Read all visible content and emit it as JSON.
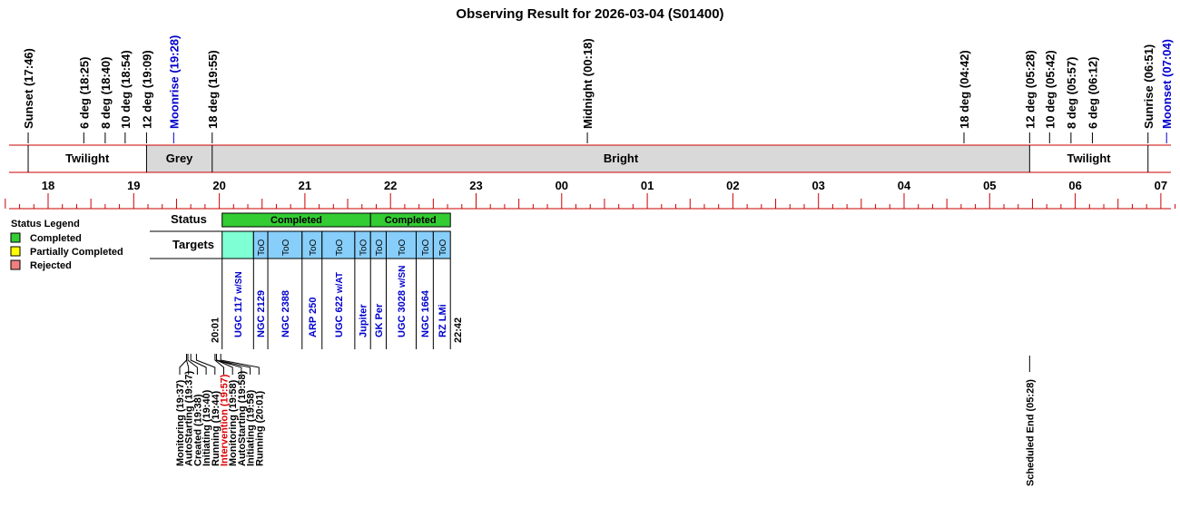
{
  "title": "Observing Result for 2026-03-04 (S01400)",
  "time_axis": {
    "start_hour": 17.5,
    "end_hour": 31.2,
    "hour_labels": [
      {
        "h": 18,
        "label": "18"
      },
      {
        "h": 19,
        "label": "19"
      },
      {
        "h": 20,
        "label": "20"
      },
      {
        "h": 21,
        "label": "21"
      },
      {
        "h": 22,
        "label": "22"
      },
      {
        "h": 23,
        "label": "23"
      },
      {
        "h": 24,
        "label": "00"
      },
      {
        "h": 25,
        "label": "01"
      },
      {
        "h": 26,
        "label": "02"
      },
      {
        "h": 27,
        "label": "03"
      },
      {
        "h": 28,
        "label": "04"
      },
      {
        "h": 29,
        "label": "05"
      },
      {
        "h": 30,
        "label": "06"
      },
      {
        "h": 31,
        "label": "07"
      }
    ]
  },
  "events": [
    {
      "label": "Sunset (17:46)",
      "h": 17.767,
      "color": "#000000"
    },
    {
      "label": "6 deg (18:25)",
      "h": 18.417,
      "color": "#000000"
    },
    {
      "label": "8 deg (18:40)",
      "h": 18.667,
      "color": "#000000"
    },
    {
      "label": "10 deg (18:54)",
      "h": 18.9,
      "color": "#000000"
    },
    {
      "label": "12 deg (19:09)",
      "h": 19.15,
      "color": "#000000"
    },
    {
      "label": "Moonrise (19:28)",
      "h": 19.467,
      "color": "#0000cc"
    },
    {
      "label": "18 deg (19:55)",
      "h": 19.917,
      "color": "#000000"
    },
    {
      "label": "Midnight (00:18)",
      "h": 24.3,
      "color": "#000000"
    },
    {
      "label": "18 deg (04:42)",
      "h": 28.7,
      "color": "#000000"
    },
    {
      "label": "12 deg (05:28)",
      "h": 29.467,
      "color": "#000000"
    },
    {
      "label": "10 deg (05:42)",
      "h": 29.7,
      "color": "#000000"
    },
    {
      "label": "8 deg (05:57)",
      "h": 29.95,
      "color": "#000000"
    },
    {
      "label": "6 deg (06:12)",
      "h": 30.2,
      "color": "#000000"
    },
    {
      "label": "Sunrise (06:51)",
      "h": 30.85,
      "color": "#000000"
    },
    {
      "label": "Moonset (07:04)",
      "h": 31.067,
      "color": "#0000cc"
    }
  ],
  "sky_bands": [
    {
      "label": "Twilight",
      "start": 17.767,
      "end": 19.15,
      "fill": "#ffffff"
    },
    {
      "label": "Grey",
      "start": 19.15,
      "end": 19.917,
      "fill": "#d9d9d9"
    },
    {
      "label": "Bright",
      "start": 19.917,
      "end": 29.467,
      "fill": "#d9d9d9"
    },
    {
      "label": "Twilight",
      "start": 29.467,
      "end": 30.85,
      "fill": "#ffffff"
    }
  ],
  "legend": {
    "title": "Status Legend",
    "items": [
      {
        "label": "Completed",
        "color": "#33cc33"
      },
      {
        "label": "Partially Completed",
        "color": "#ffff00"
      },
      {
        "label": "Rejected",
        "color": "#f08080"
      }
    ]
  },
  "status_label": "Status",
  "targets_label": "Targets",
  "status_blocks": [
    {
      "label": "Completed",
      "start": 20.033,
      "end": 21.767,
      "color": "#33cc33"
    },
    {
      "label": "Completed",
      "start": 21.767,
      "end": 22.7,
      "color": "#33cc33"
    }
  ],
  "target_cells": [
    {
      "start": 20.033,
      "end": 20.4,
      "fill": "#7fffd4",
      "tag": "",
      "name": "UGC 117",
      "note": "w/SN"
    },
    {
      "start": 20.4,
      "end": 20.567,
      "fill": "#87cefa",
      "tag": "ToO",
      "name": "NGC 2129",
      "note": ""
    },
    {
      "start": 20.567,
      "end": 20.967,
      "fill": "#87cefa",
      "tag": "ToO",
      "name": "NGC 2388",
      "note": ""
    },
    {
      "start": 20.967,
      "end": 21.2,
      "fill": "#87cefa",
      "tag": "ToO",
      "name": "ARP 250",
      "note": ""
    },
    {
      "start": 21.2,
      "end": 21.583,
      "fill": "#87cefa",
      "tag": "ToO",
      "name": "UGC 622",
      "note": "w/AT"
    },
    {
      "start": 21.583,
      "end": 21.767,
      "fill": "#87cefa",
      "tag": "ToO",
      "name": "Jupiter",
      "note": ""
    },
    {
      "start": 21.767,
      "end": 21.95,
      "fill": "#87cefa",
      "tag": "ToO",
      "name": "GK Per",
      "note": ""
    },
    {
      "start": 21.95,
      "end": 22.3,
      "fill": "#87cefa",
      "tag": "ToO",
      "name": "UGC 3028",
      "note": "w/SN"
    },
    {
      "start": 22.3,
      "end": 22.5,
      "fill": "#87cefa",
      "tag": "ToO",
      "name": "NGC 1664",
      "note": ""
    },
    {
      "start": 22.5,
      "end": 22.7,
      "fill": "#87cefa",
      "tag": "ToO",
      "name": "RZ LMi",
      "note": ""
    }
  ],
  "start_time_label": "20:01",
  "end_time_label": "22:42",
  "log_events": [
    {
      "label": "Monitoring (19:37)",
      "h": 19.617,
      "color": "#000000"
    },
    {
      "label": "AutoStarting (19:37)",
      "h": 19.617,
      "color": "#000000"
    },
    {
      "label": "Created (19:38)",
      "h": 19.633,
      "color": "#000000"
    },
    {
      "label": "Initiating (19:40)",
      "h": 19.667,
      "color": "#000000"
    },
    {
      "label": "Running (19:44)",
      "h": 19.733,
      "color": "#000000"
    },
    {
      "label": "Intervention (19:57)",
      "h": 19.95,
      "color": "#dd0000"
    },
    {
      "label": "Monitoring (19:58)",
      "h": 19.967,
      "color": "#000000"
    },
    {
      "label": "AutoStarting (19:58)",
      "h": 19.967,
      "color": "#000000"
    },
    {
      "label": "Initiating (19:58)",
      "h": 19.967,
      "color": "#000000"
    },
    {
      "label": "Running (20:01)",
      "h": 20.017,
      "color": "#000000"
    }
  ],
  "scheduled_end": {
    "label": "Scheduled End (05:28)",
    "h": 29.467
  }
}
